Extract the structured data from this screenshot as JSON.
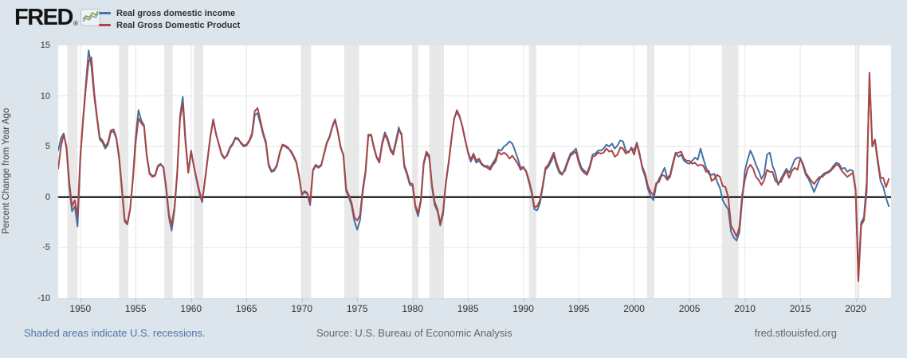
{
  "header": {
    "logo_text": "FRED",
    "logo_reg": "®"
  },
  "y_axis": {
    "title": "Percent Change from Year Ago",
    "ticks": [
      15,
      10,
      5,
      0,
      -5,
      -10
    ]
  },
  "x_axis": {
    "ticks": [
      1950,
      1955,
      1960,
      1965,
      1970,
      1975,
      1980,
      1985,
      1990,
      1995,
      2000,
      2005,
      2010,
      2015,
      2020
    ]
  },
  "footer": {
    "recession_note": "Shaded areas indicate U.S. recessions.",
    "source": "Source: U.S. Bureau of Economic Analysis",
    "site": "fred.stlouisfed.org"
  },
  "colors": {
    "background": "#dce4ec",
    "plot_background": "#ffffff",
    "recession": "#e8e8e8",
    "gridline": "#e6e6e6",
    "zero_line": "#000000",
    "blue": "#4572a7",
    "red": "#aa4643",
    "link": "#4f76a4",
    "muted_text": "#666666",
    "label_text": "#333333"
  },
  "chart_data": {
    "type": "line",
    "title": "Real gross domestic income vs Real Gross Domestic Product",
    "xlabel": "",
    "ylabel": "Percent Change from Year Ago",
    "frequency": "quarterly",
    "x_start": 1948.0,
    "x_step": 0.25,
    "x_domain": [
      1948.0,
      2023.2
    ],
    "ylim": [
      -10,
      15
    ],
    "grid": true,
    "legend_position": "top-left",
    "recessions": [
      [
        1948.83,
        1949.75
      ],
      [
        1953.5,
        1954.33
      ],
      [
        1957.58,
        1958.33
      ],
      [
        1960.25,
        1961.08
      ],
      [
        1969.92,
        1970.83
      ],
      [
        1973.83,
        1975.17
      ],
      [
        1980.0,
        1980.5
      ],
      [
        1981.5,
        1982.83
      ],
      [
        1990.5,
        1991.17
      ],
      [
        2001.17,
        2001.83
      ],
      [
        2007.92,
        2009.42
      ],
      [
        2020.08,
        2020.33
      ]
    ],
    "series": [
      {
        "name": "Real gross domestic income",
        "color": "#4572a7",
        "values": [
          4.6,
          5.8,
          6.3,
          4.8,
          1.0,
          -1.4,
          -0.9,
          -2.9,
          3.8,
          7.8,
          11.2,
          14.5,
          12.9,
          10.0,
          7.8,
          5.7,
          5.4,
          4.8,
          5.2,
          6.4,
          6.5,
          5.8,
          3.8,
          0.8,
          -2.4,
          -2.7,
          -1.2,
          1.9,
          6.0,
          8.6,
          7.6,
          7.1,
          4.2,
          2.4,
          2.1,
          2.2,
          3.1,
          3.3,
          2.9,
          0.8,
          -2.0,
          -3.3,
          -1.3,
          2.3,
          8.0,
          9.9,
          5.6,
          2.5,
          4.6,
          3.0,
          1.7,
          0.4,
          -0.5,
          1.7,
          3.9,
          6.1,
          7.7,
          6.3,
          5.2,
          4.2,
          3.8,
          4.2,
          4.9,
          5.3,
          5.9,
          5.8,
          5.3,
          5.0,
          5.1,
          5.5,
          6.1,
          8.1,
          8.3,
          7.3,
          6.2,
          5.3,
          3.1,
          2.5,
          2.6,
          3.1,
          4.3,
          5.1,
          5.0,
          4.8,
          4.6,
          4.1,
          3.5,
          2.1,
          0.2,
          0.5,
          0.3,
          -0.8,
          2.6,
          3.1,
          2.9,
          3.1,
          4.3,
          5.4,
          6.0,
          7.0,
          7.7,
          6.5,
          5.0,
          4.1,
          0.6,
          0.0,
          -0.9,
          -2.4,
          -3.2,
          -2.3,
          0.5,
          2.4,
          6.0,
          6.2,
          5.0,
          4.0,
          3.6,
          5.4,
          6.4,
          5.8,
          4.8,
          4.4,
          5.6,
          6.9,
          6.1,
          3.0,
          2.2,
          1.2,
          1.1,
          -1.0,
          -1.9,
          -0.4,
          3.2,
          4.3,
          3.9,
          1.0,
          -0.8,
          -1.4,
          -2.8,
          -1.7,
          1.3,
          3.3,
          5.6,
          7.8,
          8.4,
          7.9,
          7.0,
          5.7,
          4.4,
          3.5,
          4.1,
          3.4,
          3.6,
          3.2,
          3.0,
          3.1,
          2.9,
          3.4,
          3.8,
          4.7,
          4.6,
          5.0,
          5.2,
          5.5,
          5.3,
          4.6,
          3.8,
          2.9,
          3.0,
          2.5,
          1.5,
          0.4,
          -1.2,
          -1.3,
          -0.6,
          1.0,
          2.7,
          3.0,
          3.5,
          4.1,
          3.1,
          2.4,
          2.2,
          2.8,
          3.6,
          4.3,
          4.5,
          4.8,
          3.7,
          2.9,
          2.6,
          2.4,
          3.1,
          4.2,
          4.3,
          4.6,
          4.6,
          4.8,
          5.2,
          5.0,
          5.3,
          4.8,
          5.1,
          5.6,
          5.5,
          4.6,
          4.4,
          4.9,
          4.6,
          5.4,
          4.3,
          2.8,
          2.0,
          0.8,
          0.1,
          -0.3,
          1.2,
          1.8,
          2.3,
          2.9,
          1.9,
          2.2,
          3.4,
          4.4,
          4.0,
          4.2,
          3.6,
          3.4,
          3.3,
          3.6,
          3.9,
          3.7,
          4.8,
          3.8,
          2.9,
          2.3,
          2.2,
          2.3,
          1.5,
          0.9,
          -0.3,
          -0.8,
          -1.2,
          -3.4,
          -4.0,
          -4.3,
          -3.5,
          -0.4,
          2.6,
          3.7,
          4.6,
          4.0,
          3.2,
          2.6,
          1.8,
          2.3,
          4.2,
          4.4,
          3.1,
          2.4,
          1.2,
          1.8,
          2.3,
          2.8,
          2.4,
          3.0,
          3.7,
          3.9,
          3.9,
          3.1,
          2.2,
          1.8,
          1.2,
          0.5,
          1.2,
          1.8,
          2.2,
          2.4,
          2.5,
          2.7,
          3.1,
          3.4,
          3.3,
          2.8,
          2.9,
          2.5,
          2.7,
          2.6,
          0.8,
          -7.7,
          -2.5,
          -2.0,
          1.5,
          11.6,
          5.4,
          5.5,
          3.4,
          1.6,
          1.0,
          -0.1,
          -0.9
        ]
      },
      {
        "name": "Real Gross Domestic Product",
        "color": "#aa4643",
        "values": [
          2.8,
          5.0,
          6.2,
          5.0,
          1.5,
          -0.9,
          -0.3,
          -1.9,
          4.0,
          7.6,
          10.8,
          13.4,
          13.8,
          10.4,
          8.0,
          5.9,
          5.6,
          5.0,
          5.4,
          6.6,
          6.7,
          5.9,
          4.0,
          1.0,
          -2.2,
          -2.6,
          -1.1,
          1.8,
          5.4,
          7.8,
          7.3,
          7.0,
          4.0,
          2.3,
          2.0,
          2.1,
          3.0,
          3.2,
          3.0,
          1.0,
          -1.7,
          -2.8,
          -1.0,
          2.5,
          7.7,
          9.3,
          5.3,
          2.4,
          4.5,
          3.1,
          1.8,
          0.6,
          -0.4,
          1.6,
          3.8,
          6.0,
          7.6,
          6.2,
          5.3,
          4.3,
          3.9,
          4.1,
          4.8,
          5.2,
          5.8,
          5.7,
          5.4,
          5.1,
          5.2,
          5.6,
          6.3,
          8.5,
          8.8,
          7.6,
          6.4,
          5.5,
          3.3,
          2.6,
          2.7,
          3.2,
          4.4,
          5.2,
          5.1,
          4.9,
          4.5,
          4.0,
          3.4,
          2.0,
          0.3,
          0.6,
          0.4,
          -0.6,
          2.7,
          3.2,
          3.0,
          3.2,
          4.2,
          5.3,
          5.9,
          6.9,
          7.6,
          6.4,
          4.9,
          4.2,
          0.8,
          0.2,
          -0.6,
          -2.0,
          -2.3,
          -1.8,
          0.8,
          2.6,
          6.2,
          6.1,
          4.9,
          3.9,
          3.4,
          5.2,
          6.2,
          5.6,
          4.6,
          4.2,
          5.4,
          6.6,
          6.3,
          3.2,
          2.4,
          1.4,
          1.3,
          -0.8,
          -1.6,
          -0.2,
          3.4,
          4.5,
          4.1,
          1.2,
          -0.5,
          -1.2,
          -2.6,
          -1.4,
          1.5,
          3.4,
          5.7,
          7.7,
          8.6,
          8.0,
          6.9,
          5.6,
          4.5,
          3.7,
          4.3,
          3.6,
          3.8,
          3.3,
          3.1,
          2.9,
          2.7,
          3.2,
          3.5,
          4.5,
          4.2,
          4.4,
          4.2,
          3.8,
          4.1,
          3.7,
          3.3,
          2.7,
          2.9,
          2.6,
          1.7,
          0.6,
          -1.0,
          -0.9,
          -0.3,
          1.2,
          2.9,
          3.2,
          3.8,
          4.4,
          3.4,
          2.6,
          2.3,
          2.6,
          3.4,
          4.1,
          4.3,
          4.5,
          3.4,
          2.7,
          2.4,
          2.2,
          2.9,
          4.0,
          4.1,
          4.4,
          4.3,
          4.4,
          4.8,
          4.5,
          4.6,
          4.0,
          4.2,
          4.9,
          4.8,
          4.3,
          4.5,
          4.8,
          4.2,
          5.3,
          4.1,
          3.0,
          2.3,
          1.1,
          0.5,
          0.2,
          1.4,
          1.5,
          2.2,
          2.1,
          1.7,
          2.0,
          3.2,
          4.3,
          4.4,
          4.5,
          3.8,
          3.6,
          3.6,
          3.3,
          3.4,
          3.1,
          3.2,
          3.1,
          2.5,
          2.6,
          1.6,
          1.8,
          2.2,
          2.0,
          1.1,
          1.0,
          0.0,
          -2.8,
          -3.3,
          -3.9,
          -3.0,
          0.2,
          1.7,
          2.8,
          3.2,
          2.8,
          2.0,
          1.7,
          1.2,
          1.7,
          2.7,
          2.5,
          2.5,
          1.6,
          1.4,
          1.5,
          2.1,
          2.6,
          1.9,
          2.6,
          2.9,
          2.7,
          3.8,
          3.3,
          2.4,
          2.0,
          1.6,
          1.3,
          1.7,
          2.0,
          2.0,
          2.3,
          2.4,
          2.6,
          2.9,
          3.2,
          3.1,
          2.6,
          2.3,
          2.0,
          2.2,
          2.4,
          0.6,
          -8.3,
          -2.8,
          -2.3,
          0.6,
          12.3,
          5.0,
          5.7,
          3.7,
          1.9,
          1.9,
          1.0,
          1.8
        ]
      }
    ]
  }
}
